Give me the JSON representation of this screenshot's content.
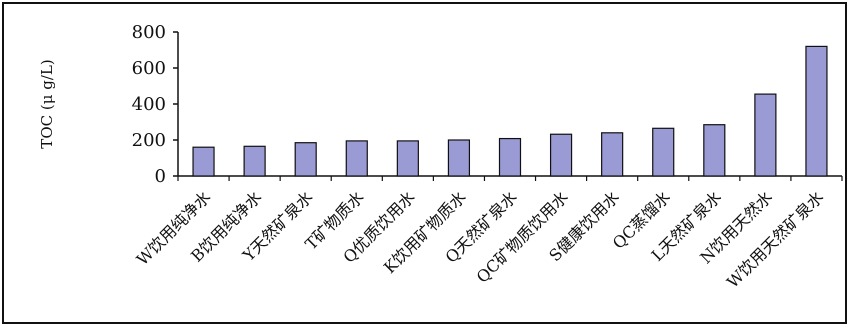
{
  "chart_data": {
    "type": "bar",
    "title": "",
    "xlabel": "",
    "ylabel": "TOC (μ g/L)",
    "ylim": [
      0,
      800
    ],
    "yticks": [
      0,
      200,
      400,
      600,
      800
    ],
    "grid": false,
    "legend": "none",
    "bar_color": "#9a9ad4",
    "categories": [
      "W饮用纯净水",
      "B饮用纯净水",
      "Y天然矿泉水",
      "T矿物质水",
      "Q优质饮用水",
      "K饮用矿物质水",
      "Q天然矿泉水",
      "QC矿物质饮用水",
      "S健康饮用水",
      "QC蒸馏水",
      "L天然矿泉水",
      "N饮用天然水",
      "W饮用天然矿泉水"
    ],
    "values": [
      160,
      165,
      185,
      195,
      195,
      200,
      208,
      232,
      240,
      265,
      285,
      455,
      720
    ]
  }
}
